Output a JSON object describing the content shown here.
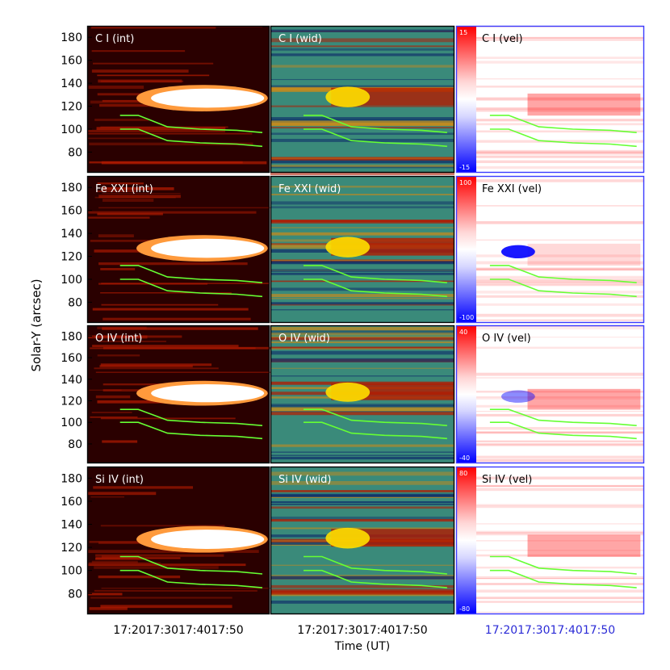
{
  "chart_data": {
    "type": "heatmap",
    "figure": "spectral-line time-slice maps",
    "ylabel": "Solar-Y (arcsec)",
    "xlabel": "Time (UT)",
    "ylim": [
      62,
      190
    ],
    "yticks": [
      "180",
      "160",
      "140",
      "120",
      "100",
      "80"
    ],
    "ytick_values": [
      180,
      160,
      140,
      120,
      100,
      80
    ],
    "xticks": [
      "17:20",
      "17:30",
      "17:40",
      "17:50"
    ],
    "columns": [
      "int",
      "wid",
      "vel"
    ],
    "rows": [
      {
        "ion": "C I",
        "panels": {
          "int": "C I (int)",
          "wid": "C I (wid)",
          "vel": "C I (vel)"
        },
        "vel_range": [
          "15",
          "-15"
        ],
        "vel_range_values": [
          15,
          -15
        ]
      },
      {
        "ion": "Fe XXI",
        "panels": {
          "int": "Fe XXI (int)",
          "wid": "Fe XXI (wid)",
          "vel": "Fe XXI (vel)"
        },
        "vel_range": [
          "100",
          "-100"
        ],
        "vel_range_values": [
          100,
          -100
        ]
      },
      {
        "ion": "O IV",
        "panels": {
          "int": "O IV (int)",
          "wid": "O IV (wid)",
          "vel": "O IV (vel)"
        },
        "vel_range": [
          "40",
          "-40"
        ],
        "vel_range_values": [
          40,
          -40
        ]
      },
      {
        "ion": "Si IV",
        "panels": {
          "int": "Si IV (int)",
          "wid": "Si IV (wid)",
          "vel": "Si IV (vel)"
        },
        "vel_range": [
          "80",
          "-80"
        ],
        "vel_range_values": [
          80,
          -80
        ]
      }
    ],
    "colors": {
      "int_dark": "#2a0000",
      "int_mid": "#b31a00",
      "int_bright": "#ff9a3c",
      "int_sat": "#ffffff",
      "wid_low": "#10306a",
      "wid_mid": "#3a8a7a",
      "wid_high": "#ffe000",
      "vel_red": "#ff0000",
      "vel_blue": "#0000ff",
      "vel_zero": "#ffffff",
      "contour": "#66ff33",
      "frame_blue": "#3a3aff",
      "tick_blue": "#2b2bd6"
    }
  }
}
